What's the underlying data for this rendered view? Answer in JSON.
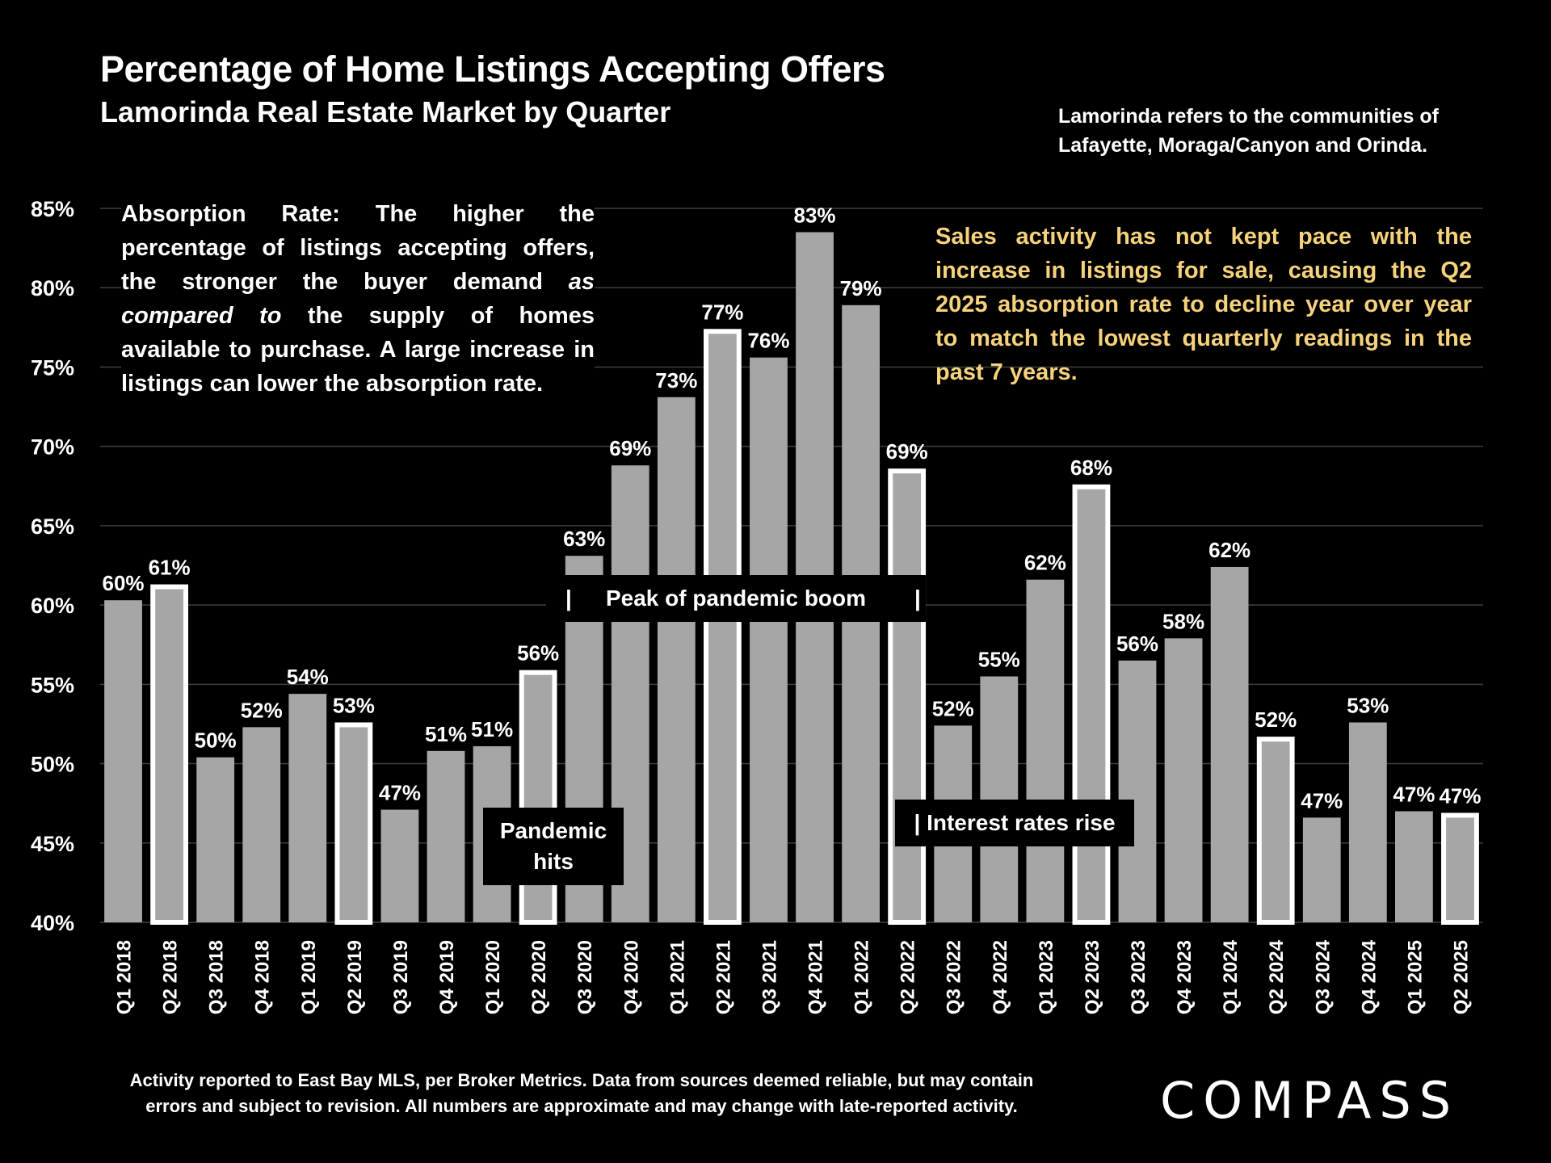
{
  "header": {
    "title": "Percentage of Home Listings Accepting Offers",
    "subtitle": "Lamorinda Real Estate Market by Quarter",
    "note": "Lamorinda refers to the communities of Lafayette, Moraga/Canyon and Orinda."
  },
  "info_box": {
    "part1": "Absorption Rate: The higher the percentage of listings accepting offers, the stronger the buyer demand ",
    "emphasis": "as compared to",
    "part2": " the supply of homes available to purchase. A large increase in listings can lower the absorption rate."
  },
  "highlight_note": "Sales activity has not kept pace with the increase in listings for sale, causing the Q2 2025 absorption rate to decline year over year to match the lowest quarterly readings in the past 7 years.",
  "annotations": {
    "pandemic": "Pandemic hits",
    "peak": "Peak of pandemic boom",
    "peak_bar": "|",
    "rates": "| Interest rates rise"
  },
  "footer": {
    "line1": "Activity reported to East Bay MLS, per Broker Metrics. Data from sources deemed reliable, but may contain",
    "line2": "errors and subject to revision. All numbers are approximate and may change with late-reported activity."
  },
  "logo": "COMPASS",
  "colors": {
    "bar": "#a6a6a6",
    "highlight_outline": "#ffffff",
    "background": "#000000",
    "note": "#f6d27c",
    "grid": "#404040"
  },
  "chart_data": {
    "type": "bar",
    "ylim": [
      40,
      85
    ],
    "yticks": [
      40,
      45,
      50,
      55,
      60,
      65,
      70,
      75,
      80,
      85
    ],
    "ytick_labels": [
      "40%",
      "45%",
      "50%",
      "55%",
      "60%",
      "65%",
      "70%",
      "75%",
      "80%",
      "85%"
    ],
    "grid": true,
    "categories": [
      "Q1 2018",
      "Q2 2018",
      "Q3 2018",
      "Q4 2018",
      "Q1 2019",
      "Q2 2019",
      "Q3 2019",
      "Q4 2019",
      "Q1 2020",
      "Q2 2020",
      "Q3 2020",
      "Q4 2020",
      "Q1 2021",
      "Q2 2021",
      "Q3 2021",
      "Q4 2021",
      "Q1 2022",
      "Q2 2022",
      "Q3 2022",
      "Q4 2022",
      "Q1 2023",
      "Q2 2023",
      "Q3 2023",
      "Q4 2023",
      "Q1 2024",
      "Q2 2024",
      "Q3 2024",
      "Q4 2024",
      "Q1 2025",
      "Q2 2025"
    ],
    "values": [
      60.3,
      61.3,
      50.4,
      52.3,
      54.4,
      52.6,
      47.1,
      50.8,
      51.1,
      55.9,
      63.1,
      68.8,
      73.1,
      77.4,
      75.6,
      83.5,
      78.9,
      68.6,
      52.4,
      55.5,
      61.6,
      67.6,
      56.5,
      57.9,
      62.4,
      51.7,
      46.6,
      52.6,
      47.0,
      46.9
    ],
    "labels": [
      "60%",
      "61%",
      "50%",
      "52%",
      "54%",
      "53%",
      "47%",
      "51%",
      "51%",
      "56%",
      "63%",
      "69%",
      "73%",
      "77%",
      "76%",
      "83%",
      "79%",
      "69%",
      "52%",
      "55%",
      "62%",
      "68%",
      "56%",
      "58%",
      "62%",
      "52%",
      "47%",
      "53%",
      "47%",
      "47%"
    ],
    "highlighted": [
      false,
      true,
      false,
      false,
      false,
      true,
      false,
      false,
      false,
      true,
      false,
      false,
      false,
      true,
      false,
      false,
      false,
      true,
      false,
      false,
      false,
      true,
      false,
      false,
      false,
      true,
      false,
      false,
      false,
      true
    ]
  }
}
